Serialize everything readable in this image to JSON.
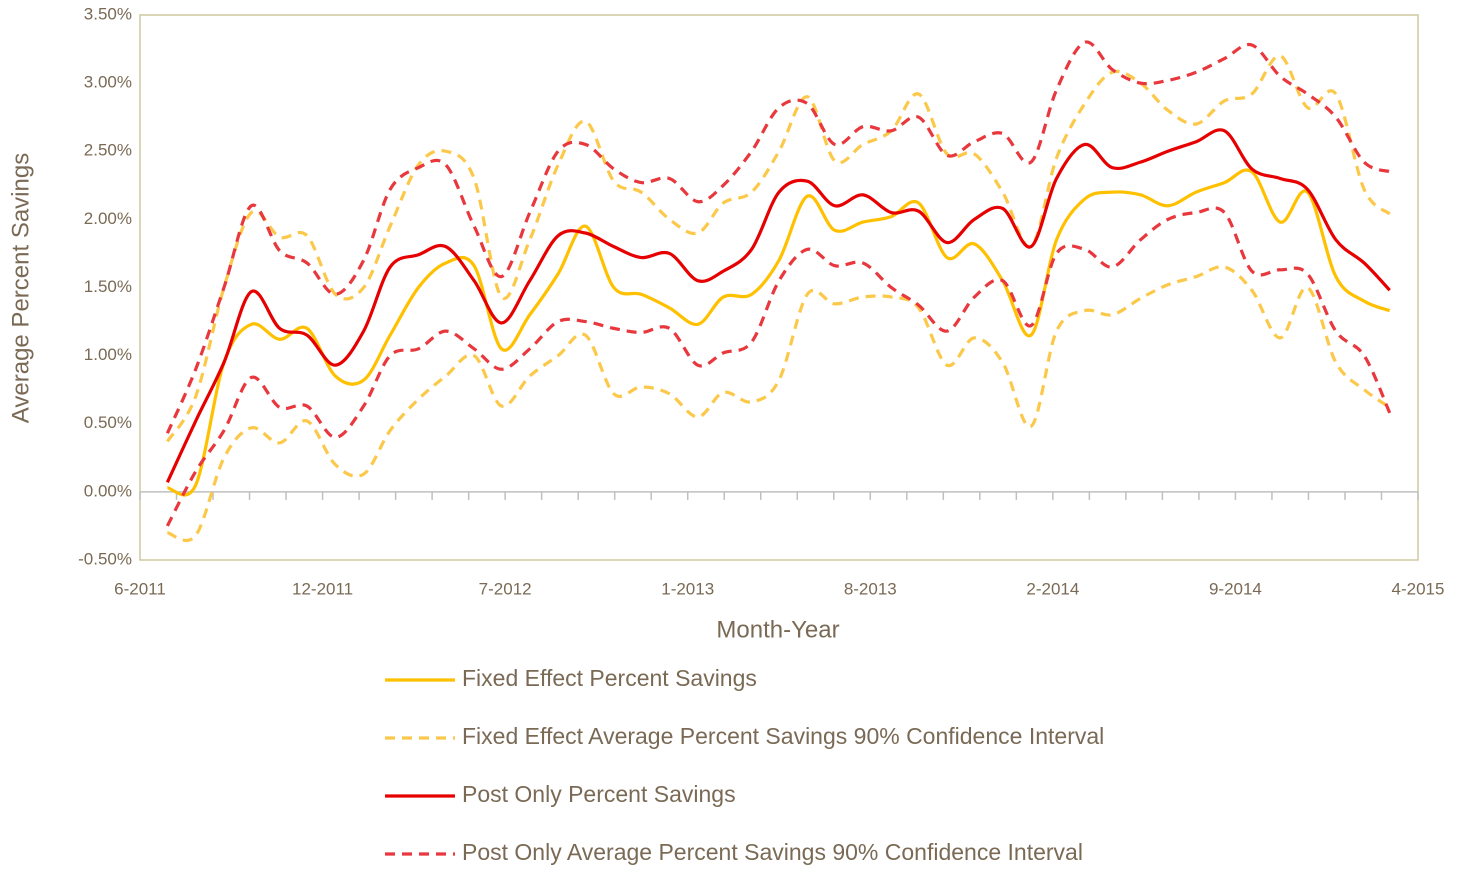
{
  "chart_data": {
    "type": "line",
    "x_title": "Month-Year",
    "y_title": "Average Percent Savings",
    "x": [
      "2011-07",
      "2011-08",
      "2011-09",
      "2011-10",
      "2011-11",
      "2011-12",
      "2012-01",
      "2012-02",
      "2012-03",
      "2012-04",
      "2012-05",
      "2012-06",
      "2012-07",
      "2012-08",
      "2012-09",
      "2012-10",
      "2012-11",
      "2012-12",
      "2013-01",
      "2013-02",
      "2013-03",
      "2013-04",
      "2013-05",
      "2013-06",
      "2013-07",
      "2013-08",
      "2013-09",
      "2013-10",
      "2013-11",
      "2013-12",
      "2014-01",
      "2014-02",
      "2014-03",
      "2014-04",
      "2014-05",
      "2014-06",
      "2014-07",
      "2014-08",
      "2014-09",
      "2014-10",
      "2014-11",
      "2014-12",
      "2015-01",
      "2015-02",
      "2015-03"
    ],
    "xlim": [
      "2011-06-01",
      "2015-04-01"
    ],
    "xticks": [
      {
        "value": "2011-06-01",
        "label": "6-2011"
      },
      {
        "value": "2011-12-18",
        "label": "12-2011"
      },
      {
        "value": "2012-07-05",
        "label": "7-2012"
      },
      {
        "value": "2013-01-21",
        "label": "1-2013"
      },
      {
        "value": "2013-08-09",
        "label": "8-2013"
      },
      {
        "value": "2014-02-25",
        "label": "2-2014"
      },
      {
        "value": "2014-09-13",
        "label": "9-2014"
      },
      {
        "value": "2015-04-01",
        "label": "4-2015"
      }
    ],
    "ylim": [
      -0.5,
      3.5
    ],
    "yticks": [
      {
        "value": -0.5,
        "label": "-0.50%"
      },
      {
        "value": 0,
        "label": "0.00%"
      },
      {
        "value": 0.5,
        "label": "0.50%"
      },
      {
        "value": 1,
        "label": "1.00%"
      },
      {
        "value": 1.5,
        "label": "1.50%"
      },
      {
        "value": 2,
        "label": "2.00%"
      },
      {
        "value": 2.5,
        "label": "2.50%"
      },
      {
        "value": 3,
        "label": "3.00%"
      },
      {
        "value": 3.5,
        "label": "3.50%"
      }
    ],
    "grid": false,
    "smooth": true,
    "legend_position": "bottom",
    "series": [
      {
        "name": "Fixed Effect Percent Savings",
        "color": "#ffc000",
        "line_style": "solid",
        "values": [
          0.03,
          0.05,
          0.95,
          1.23,
          1.12,
          1.2,
          0.85,
          0.82,
          1.15,
          1.5,
          1.68,
          1.66,
          1.05,
          1.3,
          1.6,
          1.95,
          1.5,
          1.45,
          1.35,
          1.23,
          1.43,
          1.45,
          1.7,
          2.17,
          1.92,
          1.98,
          2.02,
          2.12,
          1.72,
          1.82,
          1.55,
          1.15,
          1.85,
          2.15,
          2.2,
          2.18,
          2.1,
          2.2,
          2.27,
          2.35,
          1.98,
          2.2,
          1.58,
          1.4,
          1.33
        ]
      },
      {
        "name": "Fixed Effect Average Percent Savings 90% Confidence Interval",
        "color": "#fbc84a",
        "line_style": "dashed",
        "values": [
          0.37,
          0.7,
          1.5,
          2.05,
          1.87,
          1.88,
          1.45,
          1.5,
          1.95,
          2.4,
          2.5,
          2.3,
          1.43,
          1.85,
          2.4,
          2.72,
          2.28,
          2.2,
          2.0,
          1.9,
          2.12,
          2.2,
          2.5,
          2.9,
          2.43,
          2.55,
          2.65,
          2.92,
          2.48,
          2.48,
          2.2,
          1.8,
          2.45,
          2.85,
          3.08,
          3.0,
          2.8,
          2.7,
          2.87,
          2.92,
          3.2,
          2.82,
          2.92,
          2.22,
          2.04
        ]
      },
      {
        "name": "Fixed Effect Average Percent Savings 90% Confidence Interval Lower",
        "color": "#fbc84a",
        "line_style": "dashed",
        "legend": false,
        "values": [
          -0.3,
          -0.32,
          0.25,
          0.47,
          0.36,
          0.52,
          0.2,
          0.13,
          0.45,
          0.68,
          0.85,
          1.0,
          0.63,
          0.85,
          1.0,
          1.15,
          0.72,
          0.77,
          0.72,
          0.55,
          0.73,
          0.66,
          0.82,
          1.45,
          1.38,
          1.43,
          1.43,
          1.35,
          0.93,
          1.13,
          0.95,
          0.48,
          1.18,
          1.33,
          1.3,
          1.42,
          1.52,
          1.58,
          1.65,
          1.48,
          1.13,
          1.5,
          0.95,
          0.75,
          0.62
        ]
      },
      {
        "name": "Post Only Percent Savings",
        "color": "#e60000",
        "line_style": "solid",
        "values": [
          0.07,
          0.52,
          0.95,
          1.47,
          1.2,
          1.15,
          0.93,
          1.18,
          1.65,
          1.74,
          1.8,
          1.55,
          1.24,
          1.55,
          1.88,
          1.9,
          1.8,
          1.72,
          1.75,
          1.55,
          1.62,
          1.78,
          2.2,
          2.28,
          2.1,
          2.18,
          2.05,
          2.06,
          1.83,
          2.0,
          2.08,
          1.8,
          2.3,
          2.55,
          2.38,
          2.42,
          2.5,
          2.57,
          2.65,
          2.37,
          2.3,
          2.22,
          1.85,
          1.68,
          1.48
        ]
      },
      {
        "name": "Post Only Average Percent Savings 90% Confidence Interval",
        "color": "#e8383d",
        "line_style": "dashed",
        "values": [
          0.43,
          0.9,
          1.5,
          2.1,
          1.77,
          1.68,
          1.45,
          1.7,
          2.22,
          2.38,
          2.4,
          1.95,
          1.58,
          2.05,
          2.5,
          2.55,
          2.37,
          2.27,
          2.3,
          2.13,
          2.25,
          2.5,
          2.82,
          2.85,
          2.55,
          2.68,
          2.65,
          2.75,
          2.47,
          2.57,
          2.63,
          2.42,
          2.95,
          3.3,
          3.1,
          3.0,
          3.02,
          3.08,
          3.18,
          3.28,
          3.05,
          2.92,
          2.75,
          2.42,
          2.35
        ]
      },
      {
        "name": "Post Only Average Percent Savings 90% Confidence Interval Lower",
        "color": "#e8383d",
        "line_style": "dashed",
        "legend": false,
        "values": [
          -0.25,
          0.15,
          0.45,
          0.84,
          0.62,
          0.63,
          0.4,
          0.63,
          1.0,
          1.05,
          1.18,
          1.05,
          0.9,
          1.05,
          1.25,
          1.25,
          1.2,
          1.17,
          1.2,
          0.93,
          1.02,
          1.1,
          1.55,
          1.78,
          1.66,
          1.68,
          1.5,
          1.37,
          1.18,
          1.43,
          1.55,
          1.22,
          1.75,
          1.78,
          1.65,
          1.85,
          2.0,
          2.05,
          2.05,
          1.62,
          1.63,
          1.6,
          1.18,
          1.0,
          0.58
        ]
      }
    ]
  }
}
